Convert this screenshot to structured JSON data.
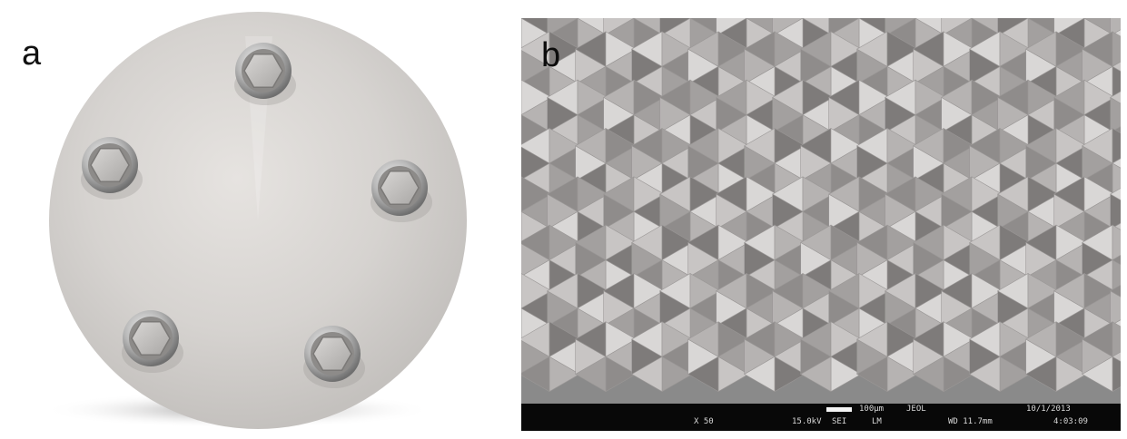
{
  "panels": {
    "a": {
      "label": "a"
    },
    "b": {
      "label": "b"
    }
  },
  "sem_info": {
    "scale": "100μm",
    "maker": "JEOL",
    "date": "10/1/2013",
    "magnification": "X 50",
    "voltage": "15.0kV",
    "detector": "SEI",
    "mode": "LM",
    "working_distance": "WD 11.7mm",
    "time": "4:03:09"
  }
}
